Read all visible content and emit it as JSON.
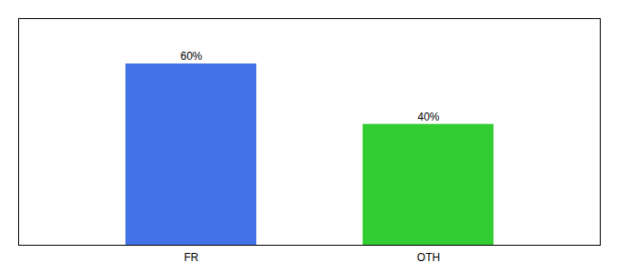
{
  "chart_data": {
    "type": "bar",
    "categories": [
      "FR",
      "OTH"
    ],
    "values": [
      60,
      40
    ],
    "colors": [
      "#4472e8",
      "#33cc33"
    ],
    "ylim": [
      0,
      75
    ],
    "data_labels": true,
    "value_labels": [
      "60%",
      "40%"
    ],
    "tick_labels": "x"
  }
}
